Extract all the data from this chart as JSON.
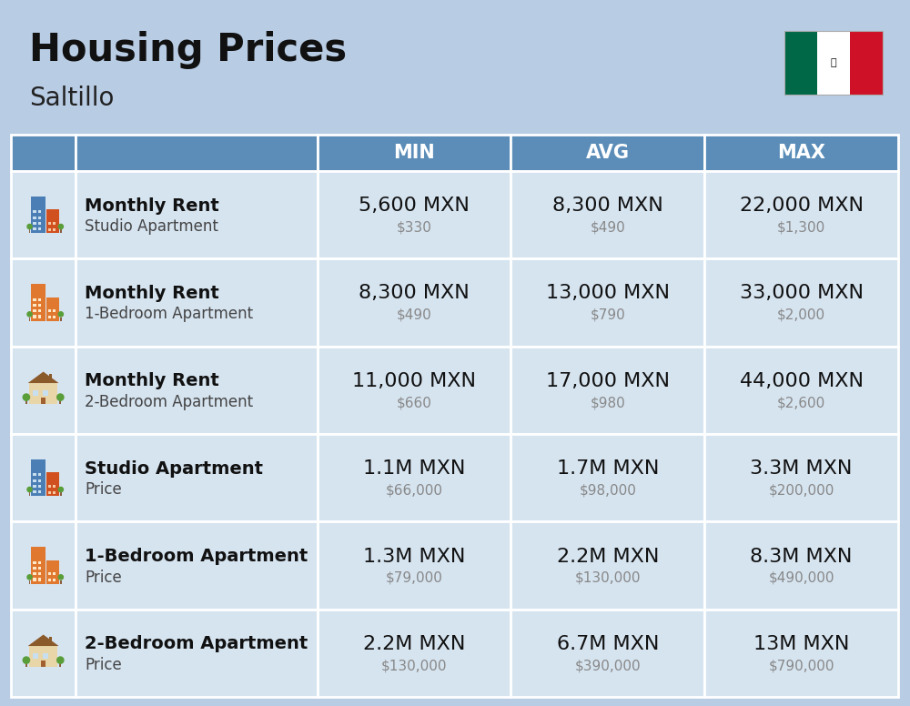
{
  "title": "Housing Prices",
  "subtitle": "Saltillo",
  "background_color": "#b8cce4",
  "header_color": "#5b8db8",
  "header_text_color": "#ffffff",
  "row_bg_light": "#d6e4f0",
  "divider_color": "#ffffff",
  "col_headers": [
    "MIN",
    "AVG",
    "MAX"
  ],
  "rows": [
    {
      "label_bold": "Monthly Rent",
      "label_light": "Studio Apartment",
      "min_main": "5,600 MXN",
      "min_sub": "$330",
      "avg_main": "8,300 MXN",
      "avg_sub": "$490",
      "max_main": "22,000 MXN",
      "max_sub": "$1,300",
      "icon_type": "studio_blue"
    },
    {
      "label_bold": "Monthly Rent",
      "label_light": "1-Bedroom Apartment",
      "min_main": "8,300 MXN",
      "min_sub": "$490",
      "avg_main": "13,000 MXN",
      "avg_sub": "$790",
      "max_main": "33,000 MXN",
      "max_sub": "$2,000",
      "icon_type": "apartment_orange"
    },
    {
      "label_bold": "Monthly Rent",
      "label_light": "2-Bedroom Apartment",
      "min_main": "11,000 MXN",
      "min_sub": "$660",
      "avg_main": "17,000 MXN",
      "avg_sub": "$980",
      "max_main": "44,000 MXN",
      "max_sub": "$2,600",
      "icon_type": "house_beige"
    },
    {
      "label_bold": "Studio Apartment",
      "label_light": "Price",
      "min_main": "1.1M MXN",
      "min_sub": "$66,000",
      "avg_main": "1.7M MXN",
      "avg_sub": "$98,000",
      "max_main": "3.3M MXN",
      "max_sub": "$200,000",
      "icon_type": "studio_blue"
    },
    {
      "label_bold": "1-Bedroom Apartment",
      "label_light": "Price",
      "min_main": "1.3M MXN",
      "min_sub": "$79,000",
      "avg_main": "2.2M MXN",
      "avg_sub": "$130,000",
      "max_main": "8.3M MXN",
      "max_sub": "$490,000",
      "icon_type": "apartment_orange"
    },
    {
      "label_bold": "2-Bedroom Apartment",
      "label_light": "Price",
      "min_main": "2.2M MXN",
      "min_sub": "$130,000",
      "avg_main": "6.7M MXN",
      "avg_sub": "$390,000",
      "max_main": "13M MXN",
      "max_sub": "$790,000",
      "icon_type": "house_beige"
    }
  ],
  "flag_colors": [
    "#006847",
    "#ffffff",
    "#ce1126"
  ],
  "title_fontsize": 30,
  "subtitle_fontsize": 20,
  "header_fontsize": 15,
  "cell_main_fontsize": 16,
  "cell_sub_fontsize": 11,
  "label_bold_fontsize": 14,
  "label_light_fontsize": 12
}
